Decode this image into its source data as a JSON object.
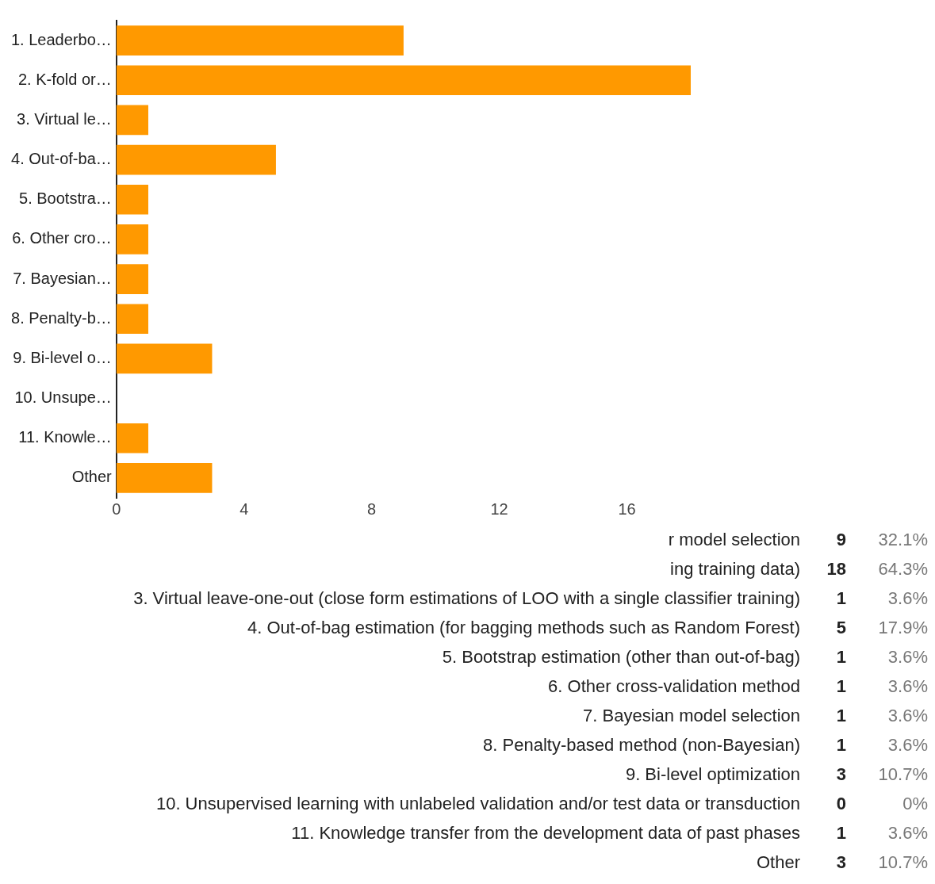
{
  "chart_data": {
    "type": "bar",
    "orientation": "horizontal",
    "categories": [
      "1. Leaderbo…",
      "2. K-fold or…",
      "3. Virtual le…",
      "4. Out-of-ba…",
      "5. Bootstra…",
      "6. Other cro…",
      "7. Bayesian…",
      "8. Penalty-b…",
      "9. Bi-level o…",
      "10. Unsupe…",
      "11. Knowle…",
      "Other"
    ],
    "values": [
      9,
      18,
      1,
      5,
      1,
      1,
      1,
      1,
      3,
      0,
      1,
      3
    ],
    "color": "#ff9900",
    "xlim": [
      0,
      18
    ],
    "xticks": [
      0,
      4,
      8,
      12,
      16
    ],
    "grid": false,
    "annotations": [
      "r model selection",
      "9",
      "32.1%",
      "ing training data)",
      "18",
      "64.3%",
      "3. Virtual leave-one-out (close form estimations of LOO with a single classifier training)",
      "1",
      "3.6%",
      "4. Out-of-bag estimation (for bagging methods such as Random Forest)",
      "5",
      "17.9%",
      "5. Bootstrap estimation (other than out-of-bag)",
      "1",
      "3.6%",
      "6. Other cross-validation method",
      "1",
      "3.6%",
      "7. Bayesian model selection",
      "1",
      "3.6%",
      "8. Penalty-based method (non-Bayesian)",
      "1",
      "3.6%",
      "9. Bi-level optimization",
      "3",
      "10.7%",
      "10. Unsupervised learning with unlabeled validation and/or test data or transduction",
      "0",
      "0%",
      "11. Knowledge transfer from the development data of past phases",
      "1",
      "3.6%",
      "Other",
      "3",
      "10.7%"
    ]
  }
}
